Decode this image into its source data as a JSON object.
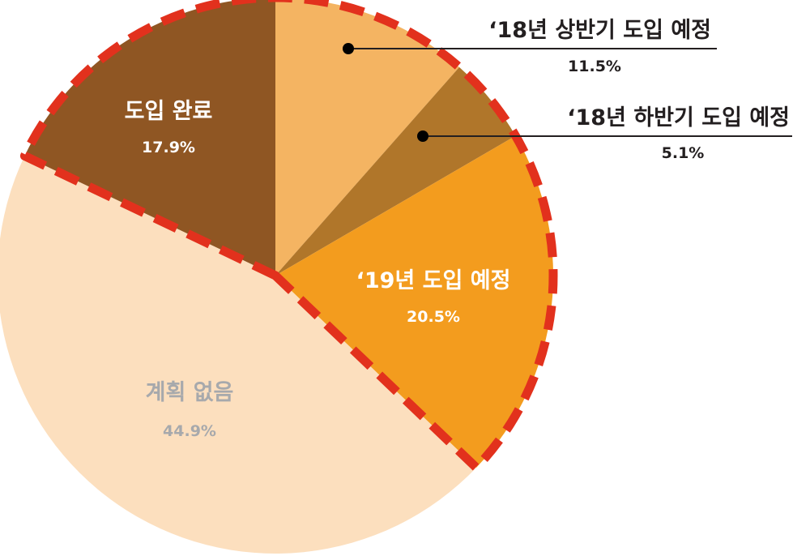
{
  "chart_data": {
    "type": "pie",
    "start_angle_deg": 0,
    "direction": "clockwise",
    "slices": [
      {
        "label": "‘18년 상반기 도입 예정",
        "value": 11.5,
        "display": "11.5%",
        "color": "#f4b462",
        "text_color": "#231f20",
        "label_mode": "callout",
        "highlighted": true
      },
      {
        "label": "‘18년 하반기 도입 예정",
        "value": 5.1,
        "display": "5.1%",
        "color": "#b0762a",
        "text_color": "#231f20",
        "label_mode": "callout",
        "highlighted": true
      },
      {
        "label": "‘19년 도입 예정",
        "value": 20.5,
        "display": "20.5%",
        "color": "#f39c1e",
        "text_color": "#ffffff",
        "label_mode": "inside",
        "highlighted": true
      },
      {
        "label": "계획 없음",
        "value": 44.9,
        "display": "44.9%",
        "color": "#fcdfbe",
        "text_color": "#a7a9ac",
        "label_mode": "inside",
        "highlighted": false
      },
      {
        "label": "도입 완료",
        "value": 17.9,
        "display": "17.9%",
        "color": "#8f5623",
        "text_color": "#ffffff",
        "label_mode": "inside",
        "highlighted": true
      }
    ],
    "highlight": {
      "style": "dashed-outline",
      "color": "#e2311d"
    },
    "callout_line_color": "#231f20",
    "callout_dot_color": "#000000"
  }
}
